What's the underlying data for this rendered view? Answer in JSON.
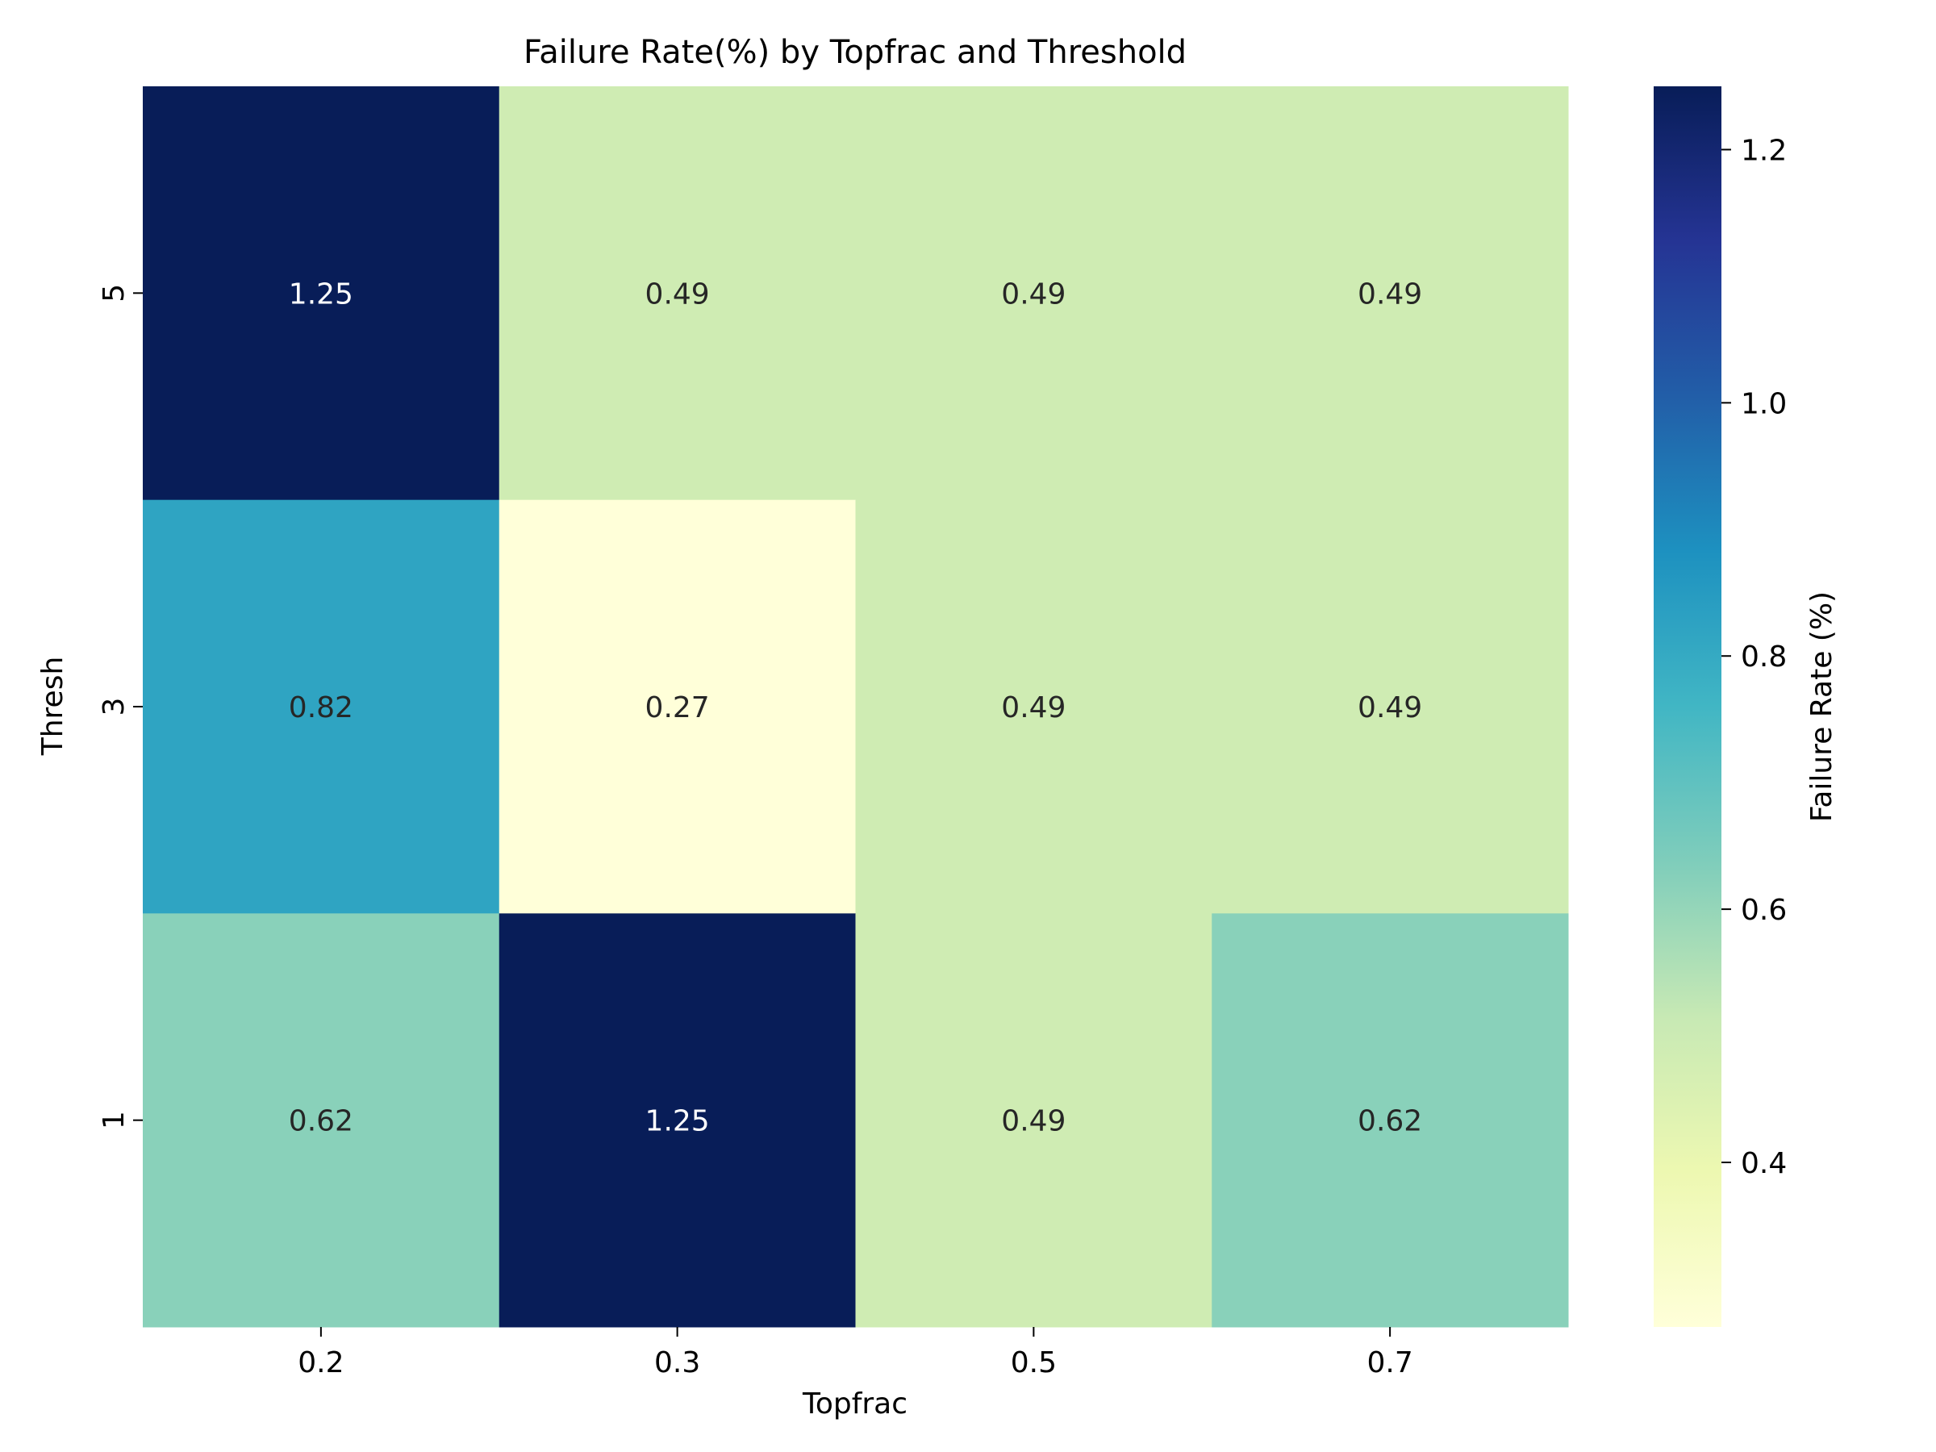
{
  "chart_data": {
    "type": "heatmap",
    "title": "Failure Rate(%) by Topfrac and Threshold",
    "xlabel": "Topfrac",
    "ylabel": "Thresh",
    "x_categories": [
      "0.2",
      "0.3",
      "0.5",
      "0.7"
    ],
    "y_categories": [
      "5",
      "3",
      "1"
    ],
    "values": [
      [
        1.25,
        0.49,
        0.49,
        0.49
      ],
      [
        0.82,
        0.27,
        0.49,
        0.49
      ],
      [
        0.62,
        1.25,
        0.49,
        0.62
      ]
    ],
    "cell_labels": [
      [
        "1.25",
        "0.49",
        "0.49",
        "0.49"
      ],
      [
        "0.82",
        "0.27",
        "0.49",
        "0.49"
      ],
      [
        "0.62",
        "1.25",
        "0.49",
        "0.62"
      ]
    ],
    "colorbar": {
      "label": "Failure Rate (%)",
      "vmin": 0.27,
      "vmax": 1.25,
      "ticks": [
        0.4,
        0.6,
        0.8,
        1.0,
        1.2
      ],
      "tick_labels": [
        "0.4",
        "0.6",
        "0.8",
        "1.0",
        "1.2"
      ],
      "colormap": "YlGnBu",
      "stops": [
        "#ffffd9",
        "#edf8b1",
        "#c7e9b4",
        "#7fcdbb",
        "#41b6c4",
        "#1d91c0",
        "#225ea8",
        "#253494",
        "#081d58"
      ]
    },
    "grid": false
  }
}
